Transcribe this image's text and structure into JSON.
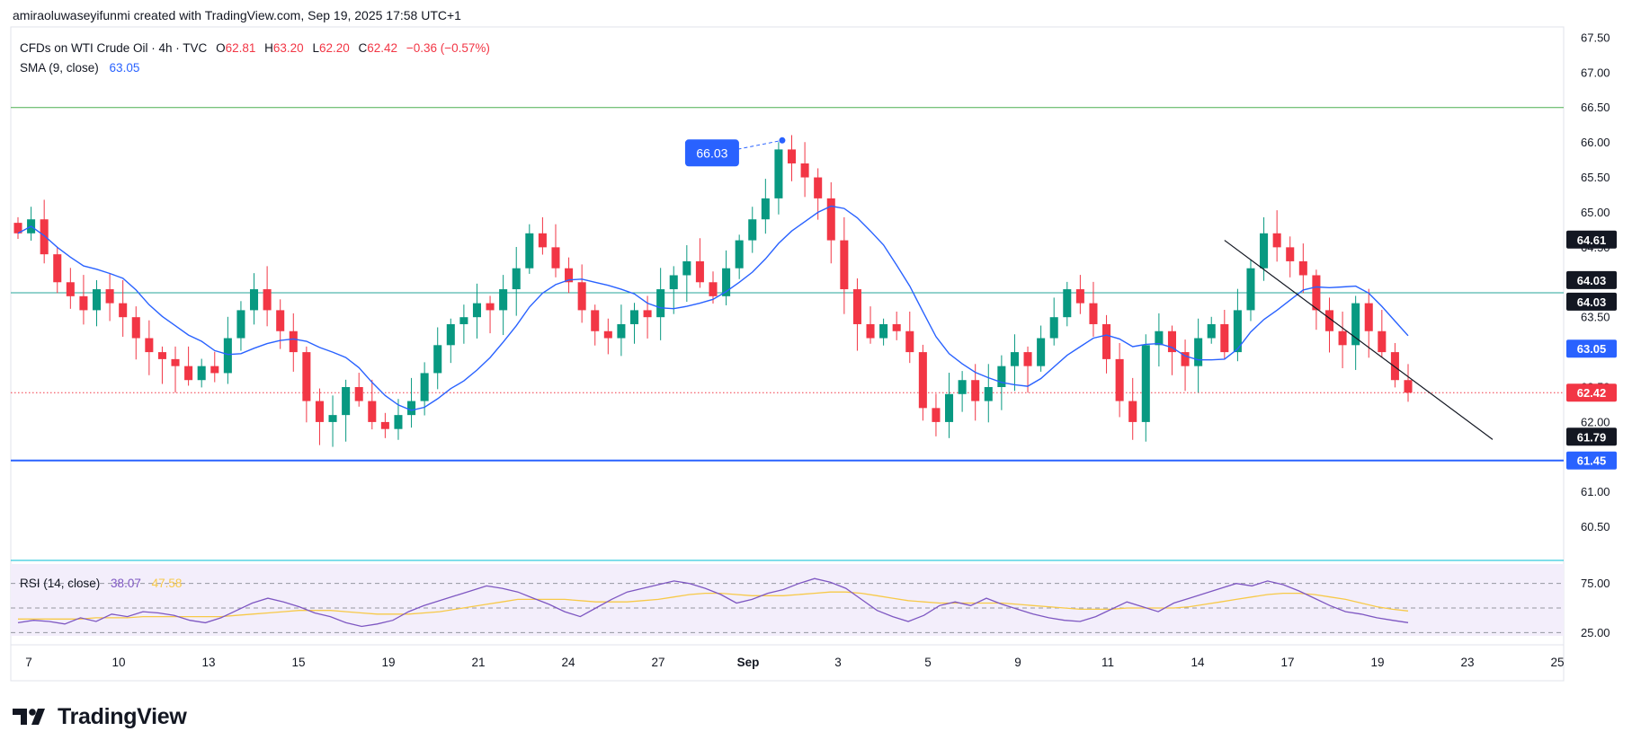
{
  "header": {
    "attribution": "amiraoluwaseyifunmi created with TradingView.com, Sep 19, 2025 17:58 UTC+1"
  },
  "legend": {
    "symbol": "CFDs on WTI Crude Oil · 4h · TVC",
    "open_label": "O",
    "open": "62.81",
    "high_label": "H",
    "high": "63.20",
    "low_label": "L",
    "low": "62.20",
    "close_label": "C",
    "close": "62.42",
    "change": "−0.36 (−0.57%)",
    "sma_label": "SMA (9, close)",
    "sma_value": "63.05"
  },
  "rsi_legend": {
    "label": "RSI (14, close)",
    "rsi_value": "38.07",
    "ma_value": "47.58"
  },
  "logo": {
    "text": "TradingView"
  },
  "colors": {
    "up": "#089981",
    "down": "#f23645",
    "sma": "#2962ff",
    "rsi": "#7e57c2",
    "rsi_ma": "#f7c948",
    "support": "#2962ff",
    "resistance": "#4caf50",
    "price_line": "#f23645"
  },
  "chart_data": {
    "type": "candlestick",
    "price_axis": {
      "range": [
        60.2,
        67.55
      ],
      "ticks": [
        "60.50",
        "61.00",
        "61.50",
        "62.00",
        "62.50",
        "63.00",
        "63.50",
        "64.00",
        "64.50",
        "65.00",
        "65.50",
        "66.00",
        "66.50",
        "67.00",
        "67.50"
      ]
    },
    "time_axis": {
      "labels": [
        "7",
        "10",
        "13",
        "15",
        "19",
        "21",
        "24",
        "27",
        "Sep",
        "3",
        "5",
        "9",
        "11",
        "14",
        "17",
        "19",
        "23",
        "25"
      ]
    },
    "horizontal_levels": [
      {
        "name": "upper-level",
        "value": 66.5
      },
      {
        "name": "middle-level",
        "value": 63.85
      },
      {
        "name": "support",
        "value": 61.45
      }
    ],
    "last_price": 62.42,
    "price_labels": [
      {
        "value": "64.61",
        "style": "dark"
      },
      {
        "value": "64.03",
        "style": "dark"
      },
      {
        "value": "64.03",
        "style": "dark"
      },
      {
        "value": "63.05",
        "style": "sma"
      },
      {
        "value": "62.42",
        "style": "last"
      },
      {
        "value": "61.79",
        "style": "dark"
      },
      {
        "value": "61.45",
        "style": "support"
      }
    ],
    "annotation": {
      "text": "66.03",
      "value": 66.03
    },
    "trendline": {
      "from_price": 64.6,
      "to_price": 61.75
    },
    "close_path": [
      64.7,
      64.9,
      64.4,
      64.0,
      63.8,
      63.6,
      63.9,
      63.7,
      63.5,
      63.2,
      63.0,
      62.9,
      62.8,
      62.6,
      62.8,
      62.7,
      63.2,
      63.6,
      63.9,
      63.6,
      63.3,
      63.0,
      62.3,
      62.0,
      62.1,
      62.5,
      62.3,
      62.0,
      61.9,
      62.1,
      62.3,
      62.7,
      63.1,
      63.4,
      63.5,
      63.7,
      63.6,
      63.9,
      64.2,
      64.7,
      64.5,
      64.2,
      64.0,
      63.6,
      63.3,
      63.2,
      63.4,
      63.6,
      63.5,
      63.9,
      64.1,
      64.3,
      64.0,
      63.8,
      64.2,
      64.6,
      64.9,
      65.2,
      65.9,
      65.7,
      65.5,
      65.2,
      64.6,
      63.9,
      63.4,
      63.2,
      63.4,
      63.3,
      63.0,
      62.2,
      62.0,
      62.4,
      62.6,
      62.3,
      62.5,
      62.8,
      63.0,
      62.8,
      63.2,
      63.5,
      63.9,
      63.7,
      63.4,
      62.9,
      62.3,
      62.0,
      63.1,
      63.3,
      63.0,
      62.8,
      63.2,
      63.4,
      63.0,
      63.6,
      64.2,
      64.7,
      64.5,
      64.3,
      64.1,
      63.6,
      63.3,
      63.1,
      63.7,
      63.3,
      63.0,
      62.6,
      62.42
    ],
    "rsi": {
      "range": [
        20,
        80
      ],
      "levels": [
        30,
        50,
        70
      ],
      "level_labels": [
        "25.00",
        "75.00"
      ],
      "rsi_path": [
        38,
        40,
        39,
        37,
        42,
        39,
        45,
        43,
        47,
        46,
        44,
        40,
        38,
        42,
        48,
        54,
        58,
        55,
        51,
        46,
        43,
        38,
        35,
        37,
        40,
        47,
        52,
        56,
        60,
        64,
        68,
        66,
        63,
        58,
        53,
        47,
        43,
        50,
        57,
        63,
        66,
        69,
        72,
        70,
        66,
        61,
        54,
        57,
        62,
        65,
        70,
        74,
        71,
        66,
        57,
        48,
        43,
        39,
        44,
        52,
        55,
        52,
        58,
        53,
        49,
        45,
        42,
        40,
        39,
        43,
        49,
        55,
        51,
        47,
        54,
        58,
        62,
        66,
        70,
        68,
        72,
        69,
        64,
        58,
        52,
        47,
        45,
        42,
        40,
        38.07
      ],
      "ma_path": [
        41,
        41,
        41,
        41,
        41,
        42,
        42,
        42,
        43,
        43,
        43,
        43,
        43,
        43,
        44,
        45,
        46,
        47,
        48,
        48,
        48,
        47,
        46,
        45,
        45,
        45,
        46,
        47,
        49,
        51,
        53,
        55,
        57,
        57,
        57,
        57,
        56,
        55,
        55,
        55,
        56,
        57,
        59,
        61,
        62,
        62,
        61,
        60,
        60,
        60,
        61,
        62,
        63,
        63,
        62,
        60,
        58,
        56,
        55,
        54,
        54,
        54,
        54,
        54,
        53,
        52,
        51,
        50,
        49,
        49,
        49,
        50,
        50,
        50,
        50,
        51,
        53,
        55,
        57,
        59,
        61,
        62,
        62,
        61,
        59,
        57,
        54,
        51,
        49,
        47.58
      ]
    }
  }
}
